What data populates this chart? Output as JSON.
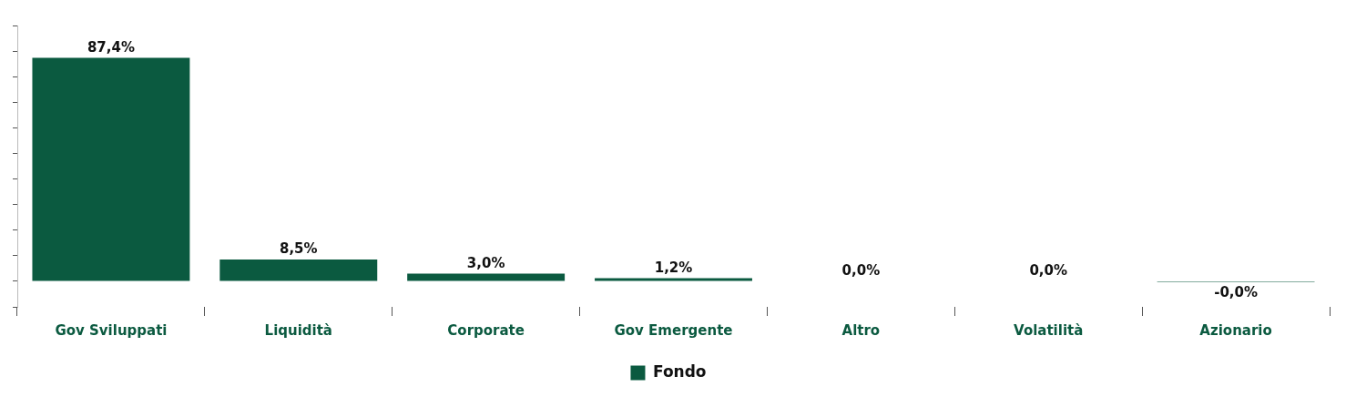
{
  "chart_data": {
    "type": "bar",
    "categories": [
      "Gov Sviluppati",
      "Liquidità",
      "Corporate",
      "Gov Emergente",
      "Altro",
      "Volatilità",
      "Azionario"
    ],
    "series": [
      {
        "name": "Fondo",
        "color": "#0b5a40",
        "values": [
          87.4,
          8.5,
          3.0,
          1.2,
          0.0,
          0.0,
          -0.04
        ],
        "value_labels": [
          "87,4%",
          "8,5%",
          "3,0%",
          "1,2%",
          "0,0%",
          "0,0%",
          "-0,0%"
        ]
      }
    ],
    "ylim": [
      -10,
      100
    ],
    "yticks": [
      {
        "value": -10,
        "label": null
      },
      {
        "value": 0,
        "label": null
      },
      {
        "value": 10,
        "label": null
      },
      {
        "value": 20,
        "label": null
      },
      {
        "value": 30,
        "label": null
      },
      {
        "value": 40,
        "label": null
      },
      {
        "value": 50,
        "label": null
      },
      {
        "value": 60,
        "label": null
      },
      {
        "value": 70,
        "label": null
      },
      {
        "value": 80,
        "label": null
      },
      {
        "value": 90,
        "label": null
      },
      {
        "value": 100,
        "label": null
      }
    ],
    "tick_labels": "x",
    "grid": false,
    "legend": "bottom"
  }
}
